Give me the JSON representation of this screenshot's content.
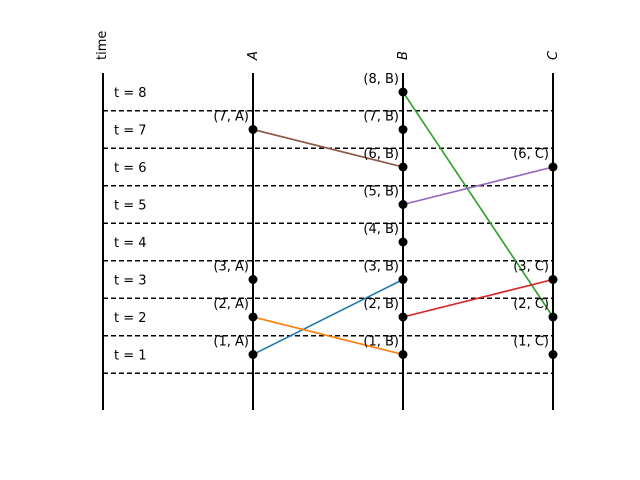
{
  "axis": {
    "time_label": "time",
    "processes": [
      {
        "id": "A",
        "label": "A"
      },
      {
        "id": "B",
        "label": "B"
      },
      {
        "id": "C",
        "label": "C"
      }
    ]
  },
  "rows": [
    {
      "t": 1,
      "label": "t = 1"
    },
    {
      "t": 2,
      "label": "t = 2"
    },
    {
      "t": 3,
      "label": "t = 3"
    },
    {
      "t": 4,
      "label": "t = 4"
    },
    {
      "t": 5,
      "label": "t = 5"
    },
    {
      "t": 6,
      "label": "t = 6"
    },
    {
      "t": 7,
      "label": "t = 7"
    },
    {
      "t": 8,
      "label": "t = 8"
    }
  ],
  "events": [
    {
      "t": 1,
      "p": "A",
      "label": "(1, A)"
    },
    {
      "t": 2,
      "p": "A",
      "label": "(2, A)"
    },
    {
      "t": 3,
      "p": "A",
      "label": "(3, A)"
    },
    {
      "t": 7,
      "p": "A",
      "label": "(7, A)"
    },
    {
      "t": 1,
      "p": "B",
      "label": "(1, B)"
    },
    {
      "t": 2,
      "p": "B",
      "label": "(2, B)"
    },
    {
      "t": 3,
      "p": "B",
      "label": "(3, B)"
    },
    {
      "t": 4,
      "p": "B",
      "label": "(4, B)"
    },
    {
      "t": 5,
      "p": "B",
      "label": "(5, B)"
    },
    {
      "t": 6,
      "p": "B",
      "label": "(6, B)"
    },
    {
      "t": 7,
      "p": "B",
      "label": "(7, B)"
    },
    {
      "t": 8,
      "p": "B",
      "label": "(8, B)"
    },
    {
      "t": 1,
      "p": "C",
      "label": "(1, C)"
    },
    {
      "t": 2,
      "p": "C",
      "label": "(2, C)"
    },
    {
      "t": 3,
      "p": "C",
      "label": "(3, C)"
    },
    {
      "t": 6,
      "p": "C",
      "label": "(6, C)"
    }
  ],
  "messages": [
    {
      "from": {
        "t": 1,
        "p": "A"
      },
      "to": {
        "t": 3,
        "p": "B"
      },
      "color": "#1f77b4"
    },
    {
      "from": {
        "t": 2,
        "p": "A"
      },
      "to": {
        "t": 1,
        "p": "B"
      },
      "color": "#ff7f0e"
    },
    {
      "from": {
        "t": 8,
        "p": "B"
      },
      "to": {
        "t": 2,
        "p": "C"
      },
      "color": "#2ca02c"
    },
    {
      "from": {
        "t": 2,
        "p": "B"
      },
      "to": {
        "t": 3,
        "p": "C"
      },
      "color": "#d62728"
    },
    {
      "from": {
        "t": 5,
        "p": "B"
      },
      "to": {
        "t": 6,
        "p": "C"
      },
      "color": "#9467bd"
    },
    {
      "from": {
        "t": 7,
        "p": "A"
      },
      "to": {
        "t": 6,
        "p": "B"
      },
      "color": "#8c564b"
    }
  ],
  "colors": {
    "line": "#000000",
    "dot": "#000000"
  }
}
